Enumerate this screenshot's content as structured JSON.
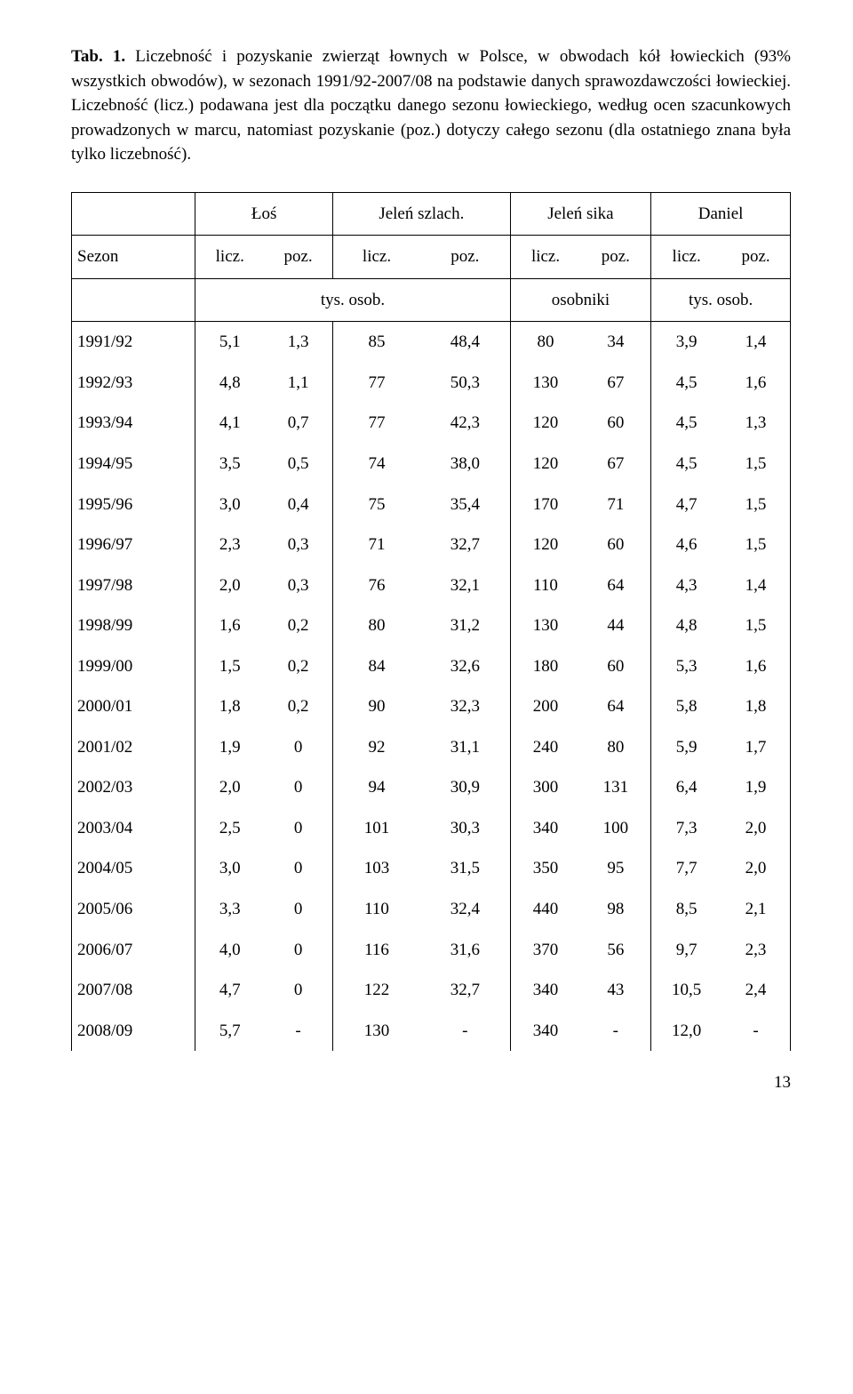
{
  "caption": {
    "label": "Tab. 1.",
    "text": " Liczebność i pozyskanie zwierząt łownych w Polsce, w obwodach kół łowieckich (93% wszystkich obwodów), w sezonach 1991/92-2007/08 na podstawie danych sprawozdawczości łowieckiej. Liczebność (licz.) podawana jest dla początku danego sezonu łowieckiego, według ocen szacunkowych prowadzonych w marcu, natomiast pozyskanie (poz.) dotyczy całego sezonu (dla ostatniego znana była tylko liczebność)."
  },
  "headers": {
    "group1": "Łoś",
    "group2": "Jeleń szlach.",
    "group3": "Jeleń sika",
    "group4": "Daniel",
    "sezon": "Sezon",
    "licz": "licz.",
    "poz": "poz.",
    "unit1": "tys. osob.",
    "unit2": "osobniki",
    "unit3": "tys. osob."
  },
  "rows": [
    {
      "s": "1991/92",
      "c": [
        "5,1",
        "1,3",
        "85",
        "48,4",
        "80",
        "34",
        "3,9",
        "1,4"
      ]
    },
    {
      "s": "1992/93",
      "c": [
        "4,8",
        "1,1",
        "77",
        "50,3",
        "130",
        "67",
        "4,5",
        "1,6"
      ]
    },
    {
      "s": "1993/94",
      "c": [
        "4,1",
        "0,7",
        "77",
        "42,3",
        "120",
        "60",
        "4,5",
        "1,3"
      ]
    },
    {
      "s": "1994/95",
      "c": [
        "3,5",
        "0,5",
        "74",
        "38,0",
        "120",
        "67",
        "4,5",
        "1,5"
      ]
    },
    {
      "s": "1995/96",
      "c": [
        "3,0",
        "0,4",
        "75",
        "35,4",
        "170",
        "71",
        "4,7",
        "1,5"
      ]
    },
    {
      "s": "1996/97",
      "c": [
        "2,3",
        "0,3",
        "71",
        "32,7",
        "120",
        "60",
        "4,6",
        "1,5"
      ]
    },
    {
      "s": "1997/98",
      "c": [
        "2,0",
        "0,3",
        "76",
        "32,1",
        "110",
        "64",
        "4,3",
        "1,4"
      ]
    },
    {
      "s": "1998/99",
      "c": [
        "1,6",
        "0,2",
        "80",
        "31,2",
        "130",
        "44",
        "4,8",
        "1,5"
      ]
    },
    {
      "s": "1999/00",
      "c": [
        "1,5",
        "0,2",
        "84",
        "32,6",
        "180",
        "60",
        "5,3",
        "1,6"
      ]
    },
    {
      "s": "2000/01",
      "c": [
        "1,8",
        "0,2",
        "90",
        "32,3",
        "200",
        "64",
        "5,8",
        "1,8"
      ]
    },
    {
      "s": "2001/02",
      "c": [
        "1,9",
        "0",
        "92",
        "31,1",
        "240",
        "80",
        "5,9",
        "1,7"
      ]
    },
    {
      "s": "2002/03",
      "c": [
        "2,0",
        "0",
        "94",
        "30,9",
        "300",
        "131",
        "6,4",
        "1,9"
      ]
    },
    {
      "s": "2003/04",
      "c": [
        "2,5",
        "0",
        "101",
        "30,3",
        "340",
        "100",
        "7,3",
        "2,0"
      ]
    },
    {
      "s": "2004/05",
      "c": [
        "3,0",
        "0",
        "103",
        "31,5",
        "350",
        "95",
        "7,7",
        "2,0"
      ]
    },
    {
      "s": "2005/06",
      "c": [
        "3,3",
        "0",
        "110",
        "32,4",
        "440",
        "98",
        "8,5",
        "2,1"
      ]
    },
    {
      "s": "2006/07",
      "c": [
        "4,0",
        "0",
        "116",
        "31,6",
        "370",
        "56",
        "9,7",
        "2,3"
      ]
    },
    {
      "s": "2007/08",
      "c": [
        "4,7",
        "0",
        "122",
        "32,7",
        "340",
        "43",
        "10,5",
        "2,4"
      ]
    },
    {
      "s": "2008/09",
      "c": [
        "5,7",
        "-",
        "130",
        "-",
        "340",
        "-",
        "12,0",
        "-"
      ]
    }
  ],
  "pagenum": "13"
}
